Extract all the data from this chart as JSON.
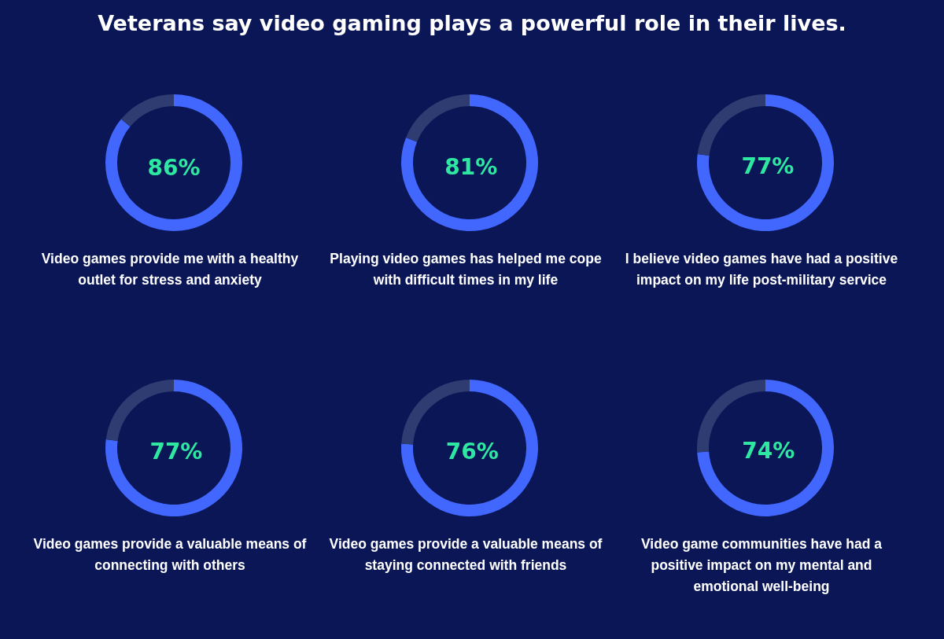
{
  "chart_data": [
    {
      "type": "other",
      "title": "Veterans say video gaming plays a powerful role in their lives."
    },
    {
      "type": "donut",
      "title": "Video games provide me with a healthy outlet for stress and anxiety",
      "categories": [
        null,
        null
      ],
      "values": [
        86,
        14
      ],
      "colors": [
        "#4267ff",
        "#2f3c72"
      ],
      "value_labels": [
        "86%",
        null
      ]
    },
    {
      "type": "donut",
      "title": "Playing video games has helped me cope with difficult times in my life",
      "categories": [
        null,
        null
      ],
      "values": [
        81,
        19
      ],
      "colors": [
        "#4267ff",
        "#2f3c72"
      ],
      "value_labels": [
        "81%",
        null
      ]
    },
    {
      "type": "donut",
      "title": "I believe video games have had a positive impact on my life post-military service",
      "categories": [
        null,
        null
      ],
      "values": [
        77,
        23
      ],
      "colors": [
        "#4267ff",
        "#2f3c72"
      ],
      "value_labels": [
        "77%",
        null
      ]
    },
    {
      "type": "donut",
      "title": "Video games provide a valuable means of connecting with others",
      "categories": [
        null,
        null
      ],
      "values": [
        77,
        23
      ],
      "colors": [
        "#4267ff",
        "#2f3c72"
      ],
      "value_labels": [
        "77%",
        null
      ]
    },
    {
      "type": "donut",
      "title": "Video games provide a valuable means of staying connected with friends",
      "categories": [
        null,
        null
      ],
      "values": [
        76,
        24
      ],
      "colors": [
        "#4267ff",
        "#2f3c72"
      ],
      "value_labels": [
        "76%",
        null
      ]
    },
    {
      "type": "donut",
      "title": "Video game communities have had a positive impact on my mental and emotional well-being",
      "categories": [
        null,
        null
      ],
      "values": [
        74,
        26
      ],
      "colors": [
        "#4267ff",
        "#2f3c72"
      ],
      "value_labels": [
        "74%",
        null
      ]
    }
  ]
}
